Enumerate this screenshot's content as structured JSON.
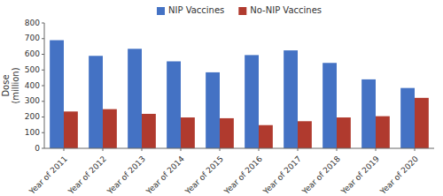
{
  "chart_data": {
    "type": "bar",
    "ylabel": "Dose\n(million)",
    "categories": [
      "Year of 2011",
      "Year of 2012",
      "Year of 2013",
      "Year of 2014",
      "Year of 2015",
      "Year of 2016",
      "Year of 2017",
      "Year of 2018",
      "Year of 2019",
      "Year of 2020"
    ],
    "series": [
      {
        "name": "NIP Vaccines",
        "color": "#4472C4",
        "values": [
          690,
          590,
          635,
          555,
          485,
          595,
          625,
          545,
          440,
          385
        ]
      },
      {
        "name": "No-NIP Vaccines",
        "color": "#B03A2E",
        "values": [
          235,
          250,
          220,
          197,
          192,
          148,
          173,
          197,
          205,
          322
        ]
      }
    ],
    "ylim": [
      0,
      800
    ],
    "yticks": [
      0,
      100,
      200,
      300,
      400,
      500,
      600,
      700,
      800
    ],
    "legend": "top",
    "grid": false
  }
}
